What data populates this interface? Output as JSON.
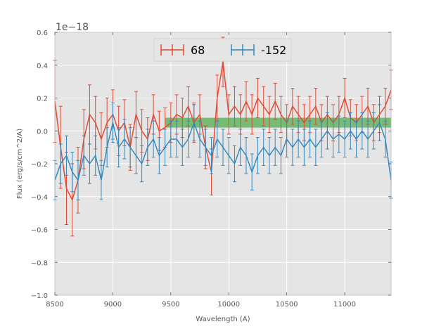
{
  "chart_data": {
    "type": "line",
    "title": "",
    "xlabel": "Wavelength (A)",
    "ylabel": "Flux (erg/s/cm^2/A)",
    "offset_text": "1e−18",
    "xlim": [
      8500,
      11400
    ],
    "ylim": [
      -1.0,
      0.6
    ],
    "xticks": [
      8500,
      9000,
      9500,
      10000,
      10500,
      11000
    ],
    "xtick_labels": [
      "8500",
      "9000",
      "9500",
      "10000",
      "10500",
      "11000"
    ],
    "yticks": [
      -1.0,
      -0.8,
      -0.6,
      -0.4,
      -0.2,
      0.0,
      0.2,
      0.4,
      0.6
    ],
    "ytick_labels": [
      "−1.0",
      "−0.8",
      "−0.6",
      "−0.4",
      "−0.2",
      "0.0",
      "0.2",
      "0.4",
      "0.6"
    ],
    "grid": true,
    "legend": {
      "position": "top-center",
      "columns": 2
    },
    "band": {
      "label": "green band",
      "x_range": [
        9450,
        11400
      ],
      "y_range": [
        0.02,
        0.08
      ],
      "color": "#2ca02c"
    },
    "series": [
      {
        "name": "68",
        "color": "#e24a33",
        "x": [
          8500,
          8550,
          8600,
          8650,
          8700,
          8750,
          8800,
          8850,
          8900,
          8950,
          9000,
          9050,
          9100,
          9150,
          9200,
          9250,
          9300,
          9350,
          9400,
          9450,
          9500,
          9550,
          9600,
          9650,
          9700,
          9750,
          9800,
          9850,
          9900,
          9950,
          10000,
          10050,
          10100,
          10150,
          10200,
          10250,
          10300,
          10350,
          10400,
          10450,
          10500,
          10550,
          10600,
          10650,
          10700,
          10750,
          10800,
          10850,
          10900,
          10950,
          11000,
          11050,
          11100,
          11150,
          11200,
          11250,
          11300,
          11350,
          11400
        ],
        "y": [
          0.18,
          -0.1,
          -0.35,
          -0.42,
          -0.3,
          -0.05,
          0.1,
          0.05,
          -0.05,
          0.05,
          0.1,
          0.0,
          0.05,
          -0.1,
          0.1,
          0.0,
          -0.05,
          0.1,
          0.0,
          0.02,
          0.05,
          0.1,
          0.08,
          0.15,
          0.05,
          0.1,
          -0.1,
          -0.25,
          0.2,
          0.42,
          0.1,
          0.15,
          0.1,
          0.18,
          0.1,
          0.2,
          0.15,
          0.1,
          0.18,
          0.1,
          0.05,
          0.15,
          0.1,
          0.05,
          0.1,
          0.15,
          0.05,
          0.1,
          0.05,
          0.1,
          0.2,
          0.08,
          0.05,
          0.1,
          0.15,
          0.05,
          0.1,
          0.15,
          0.25
        ],
        "yerr": [
          0.25,
          0.25,
          0.22,
          0.22,
          0.2,
          0.18,
          0.18,
          0.16,
          0.16,
          0.15,
          0.15,
          0.15,
          0.14,
          0.14,
          0.14,
          0.13,
          0.13,
          0.12,
          0.12,
          0.12,
          0.12,
          0.12,
          0.12,
          0.12,
          0.12,
          0.12,
          0.13,
          0.14,
          0.14,
          0.15,
          0.12,
          0.12,
          0.12,
          0.12,
          0.12,
          0.12,
          0.12,
          0.11,
          0.11,
          0.11,
          0.11,
          0.11,
          0.11,
          0.11,
          0.11,
          0.11,
          0.11,
          0.11,
          0.11,
          0.11,
          0.12,
          0.11,
          0.11,
          0.11,
          0.11,
          0.11,
          0.11,
          0.11,
          0.12
        ]
      },
      {
        "name": "-152",
        "color": "#348abd",
        "x": [
          8500,
          8550,
          8600,
          8650,
          8700,
          8750,
          8800,
          8850,
          8900,
          8950,
          9000,
          9050,
          9100,
          9150,
          9200,
          9250,
          9300,
          9350,
          9400,
          9450,
          9500,
          9550,
          9600,
          9650,
          9700,
          9750,
          9800,
          9850,
          9900,
          9950,
          10000,
          10050,
          10100,
          10150,
          10200,
          10250,
          10300,
          10350,
          10400,
          10450,
          10500,
          10550,
          10600,
          10650,
          10700,
          10750,
          10800,
          10850,
          10900,
          10950,
          11000,
          11050,
          11100,
          11150,
          11200,
          11250,
          11300,
          11350,
          11400
        ],
        "y": [
          -0.3,
          -0.2,
          -0.15,
          -0.25,
          -0.3,
          -0.15,
          -0.2,
          -0.15,
          -0.3,
          -0.1,
          0.05,
          -0.1,
          -0.05,
          -0.1,
          -0.15,
          -0.2,
          -0.1,
          -0.05,
          -0.15,
          -0.1,
          -0.05,
          -0.05,
          -0.1,
          -0.05,
          0.05,
          -0.05,
          -0.1,
          -0.15,
          -0.05,
          -0.1,
          -0.15,
          -0.2,
          -0.1,
          -0.15,
          -0.25,
          -0.15,
          -0.1,
          -0.15,
          -0.1,
          -0.15,
          -0.05,
          -0.1,
          -0.05,
          -0.1,
          -0.05,
          -0.1,
          -0.05,
          0.0,
          -0.05,
          -0.02,
          -0.05,
          0.0,
          -0.05,
          0.0,
          -0.05,
          0.0,
          0.05,
          -0.05,
          -0.3
        ],
        "yerr": [
          0.12,
          0.12,
          0.12,
          0.12,
          0.12,
          0.12,
          0.12,
          0.12,
          0.12,
          0.12,
          0.12,
          0.12,
          0.12,
          0.12,
          0.11,
          0.11,
          0.11,
          0.11,
          0.11,
          0.11,
          0.11,
          0.11,
          0.11,
          0.11,
          0.11,
          0.11,
          0.11,
          0.11,
          0.11,
          0.11,
          0.11,
          0.11,
          0.11,
          0.11,
          0.11,
          0.11,
          0.11,
          0.11,
          0.11,
          0.11,
          0.11,
          0.11,
          0.11,
          0.11,
          0.11,
          0.11,
          0.11,
          0.11,
          0.11,
          0.11,
          0.11,
          0.11,
          0.11,
          0.11,
          0.11,
          0.11,
          0.11,
          0.11,
          0.11
        ]
      }
    ]
  },
  "colors": {
    "plot_background": "#e5e5e5",
    "grid": "#ffffff",
    "text": "#555555"
  }
}
